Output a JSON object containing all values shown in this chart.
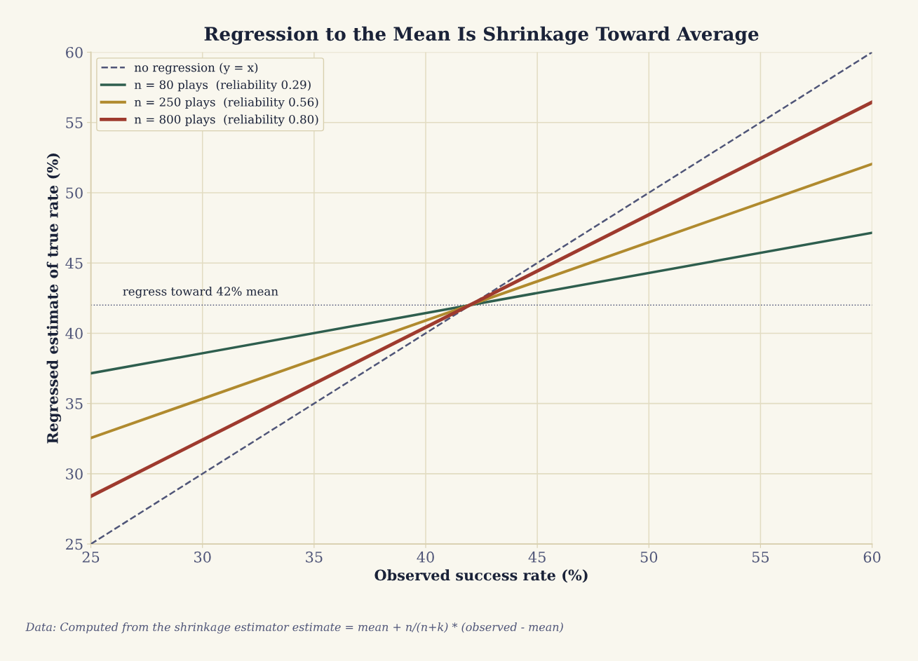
{
  "chart_data": {
    "type": "line",
    "title": "Regression to the Mean Is Shrinkage Toward Average",
    "xlabel": "Observed success rate (%)",
    "ylabel": "Regressed estimate of true rate (%)",
    "x": [
      25,
      60
    ],
    "series": [
      {
        "name": "no regression (y = x)",
        "color": "#4f5578",
        "values": [
          25,
          60
        ],
        "line_style": "dashed"
      },
      {
        "name": "n = 80 plays  (reliability 0.29)",
        "color": "#2e5e4e",
        "values": [
          37.15,
          47.15
        ]
      },
      {
        "name": "n = 250 plays  (reliability 0.56)",
        "color": "#b08a2e",
        "values": [
          32.55,
          52.05
        ]
      },
      {
        "name": "n = 800 plays  (reliability 0.80)",
        "color": "#9e3a2e",
        "values": [
          28.4,
          56.45
        ]
      }
    ],
    "ref_lines": [
      {
        "axis": "y",
        "value": 42,
        "label": "regress toward 42% mean",
        "color": "#4f5578",
        "line_style": "dotted"
      }
    ],
    "xlim": [
      25,
      60
    ],
    "xticks": [
      25,
      30,
      35,
      40,
      45,
      50,
      55,
      60
    ],
    "ylim": [
      25,
      60
    ],
    "yticks": [
      25,
      30,
      35,
      40,
      45,
      50,
      55,
      60
    ],
    "grid": true,
    "legend": "top left",
    "marker": "none",
    "line_style": "solid",
    "annotations": [
      "Data: Computed from the shrinkage estimator estimate = mean + n/(n+k) * (observed - mean)"
    ]
  }
}
